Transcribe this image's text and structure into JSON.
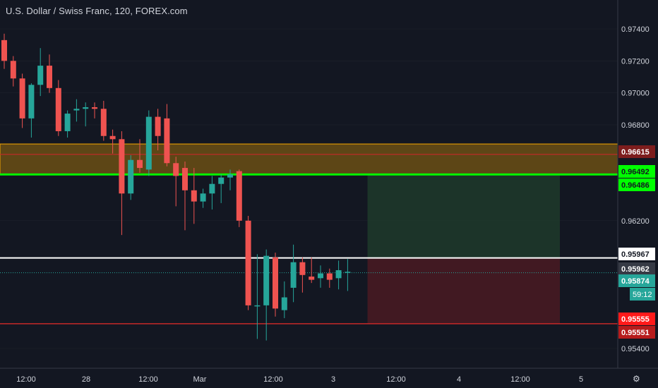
{
  "header": {
    "title": "U.S. Dollar / Swiss Franc, 120, FOREX.com"
  },
  "colors": {
    "background": "#131722",
    "up": "#26a69a",
    "down": "#ef5350",
    "axis_text": "#d1d4dc",
    "grid": "#2a2e39"
  },
  "chart_data": {
    "type": "candlestick",
    "symbol": "USDCHF",
    "timeframe": "120",
    "ylim": [
      0.953,
      0.975
    ],
    "y_ticks": [
      "0.97400",
      "0.97200",
      "0.97000",
      "0.96800",
      "0.96200",
      "0.95400"
    ],
    "x_ticks": [
      "12:00",
      "28",
      "12:00",
      "Mar",
      "12:00",
      "3",
      "12:00",
      "4",
      "12:00",
      "5"
    ],
    "candles": [
      {
        "o": 0.9733,
        "h": 0.9737,
        "l": 0.9715,
        "c": 0.972
      },
      {
        "o": 0.972,
        "h": 0.9723,
        "l": 0.9704,
        "c": 0.9709
      },
      {
        "o": 0.9709,
        "h": 0.9712,
        "l": 0.9678,
        "c": 0.9684
      },
      {
        "o": 0.9684,
        "h": 0.9706,
        "l": 0.9672,
        "c": 0.9705
      },
      {
        "o": 0.9705,
        "h": 0.9728,
        "l": 0.9698,
        "c": 0.9717
      },
      {
        "o": 0.9717,
        "h": 0.9724,
        "l": 0.97,
        "c": 0.9703
      },
      {
        "o": 0.9703,
        "h": 0.9708,
        "l": 0.9673,
        "c": 0.9676
      },
      {
        "o": 0.9676,
        "h": 0.9689,
        "l": 0.9672,
        "c": 0.9687
      },
      {
        "o": 0.9689,
        "h": 0.9696,
        "l": 0.9682,
        "c": 0.969
      },
      {
        "o": 0.969,
        "h": 0.9694,
        "l": 0.9679,
        "c": 0.9691
      },
      {
        "o": 0.9691,
        "h": 0.9694,
        "l": 0.9684,
        "c": 0.969
      },
      {
        "o": 0.969,
        "h": 0.9695,
        "l": 0.967,
        "c": 0.9673
      },
      {
        "o": 0.9673,
        "h": 0.9677,
        "l": 0.9662,
        "c": 0.9671
      },
      {
        "o": 0.9671,
        "h": 0.9676,
        "l": 0.9611,
        "c": 0.9637
      },
      {
        "o": 0.9637,
        "h": 0.9661,
        "l": 0.9633,
        "c": 0.9658
      },
      {
        "o": 0.9658,
        "h": 0.9671,
        "l": 0.965,
        "c": 0.9653
      },
      {
        "o": 0.9652,
        "h": 0.9689,
        "l": 0.9648,
        "c": 0.9685
      },
      {
        "o": 0.9685,
        "h": 0.969,
        "l": 0.9664,
        "c": 0.9673
      },
      {
        "o": 0.9684,
        "h": 0.9693,
        "l": 0.9654,
        "c": 0.9656
      },
      {
        "o": 0.9656,
        "h": 0.966,
        "l": 0.9629,
        "c": 0.9648
      },
      {
        "o": 0.9653,
        "h": 0.9657,
        "l": 0.9614,
        "c": 0.9639
      },
      {
        "o": 0.9639,
        "h": 0.9653,
        "l": 0.9618,
        "c": 0.9632
      },
      {
        "o": 0.9632,
        "h": 0.964,
        "l": 0.9628,
        "c": 0.9637
      },
      {
        "o": 0.9637,
        "h": 0.9648,
        "l": 0.9627,
        "c": 0.9643
      },
      {
        "o": 0.9643,
        "h": 0.9649,
        "l": 0.9631,
        "c": 0.9647
      },
      {
        "o": 0.9647,
        "h": 0.9652,
        "l": 0.9639,
        "c": 0.9649
      },
      {
        "o": 0.9651,
        "h": 0.9652,
        "l": 0.9616,
        "c": 0.962
      },
      {
        "o": 0.962,
        "h": 0.9623,
        "l": 0.9564,
        "c": 0.9567
      },
      {
        "o": 0.9567,
        "h": 0.9599,
        "l": 0.9546,
        "c": 0.9567
      },
      {
        "o": 0.9567,
        "h": 0.9602,
        "l": 0.9545,
        "c": 0.9598
      },
      {
        "o": 0.9597,
        "h": 0.96,
        "l": 0.956,
        "c": 0.9565
      },
      {
        "o": 0.9564,
        "h": 0.9582,
        "l": 0.9559,
        "c": 0.9572
      },
      {
        "o": 0.9578,
        "h": 0.9605,
        "l": 0.9569,
        "c": 0.9594
      },
      {
        "o": 0.9594,
        "h": 0.9597,
        "l": 0.9575,
        "c": 0.9586
      },
      {
        "o": 0.9585,
        "h": 0.9597,
        "l": 0.9581,
        "c": 0.9583
      },
      {
        "o": 0.9584,
        "h": 0.9592,
        "l": 0.9578,
        "c": 0.9587
      },
      {
        "o": 0.9587,
        "h": 0.959,
        "l": 0.9578,
        "c": 0.9583
      },
      {
        "o": 0.9584,
        "h": 0.9595,
        "l": 0.9577,
        "c": 0.9589
      },
      {
        "o": 0.9588,
        "h": 0.9596,
        "l": 0.9576,
        "c": 0.9588
      }
    ],
    "horizontal_levels": [
      {
        "value": 0.96615,
        "label": "0.96615",
        "color": "#7d1d1d",
        "text_color": "#ffffff"
      },
      {
        "value": 0.96492,
        "label": "0.96492",
        "color": "#00ff00",
        "text_color": "#131722"
      },
      {
        "value": 0.96486,
        "label": "0.96486",
        "color": "#00ff00",
        "text_color": "#131722"
      },
      {
        "value": 0.95967,
        "label": "0.95967",
        "color": "#ffffff",
        "text_color": "#131722"
      },
      {
        "value": 0.95962,
        "label": "0.95962",
        "color": "#363a45",
        "text_color": "#ffffff"
      },
      {
        "value": 0.95874,
        "label": "0.95874",
        "color": "#26a69a",
        "text_color": "#ffffff",
        "sub": "59:12"
      },
      {
        "value": 0.95555,
        "label": "0.95555",
        "color": "#ff0000",
        "text_color": "#ffffff"
      },
      {
        "value": 0.95551,
        "label": "0.95551",
        "color": "#b71c1c",
        "text_color": "#ffffff"
      }
    ],
    "zone": {
      "top": 0.9668,
      "bottom": 0.96492,
      "color": "#f7a600"
    },
    "position": {
      "entry": 0.95967,
      "target": 0.96486,
      "stop": 0.95555
    }
  }
}
